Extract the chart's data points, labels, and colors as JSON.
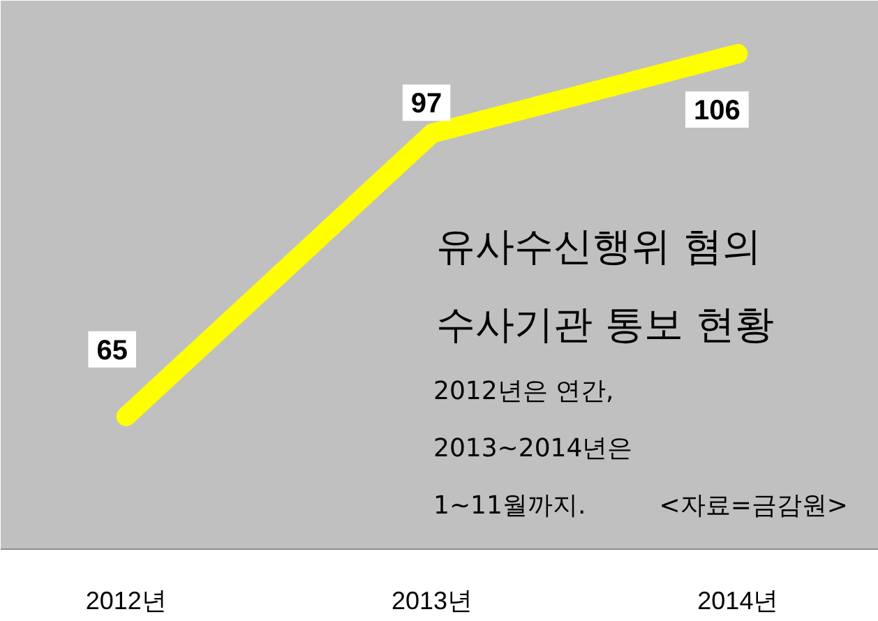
{
  "chart_data": {
    "type": "line",
    "title": "유사수신행위 혐의\n수사기관 통보 현황",
    "subtitle": "2012년은 연간,\n2013~2014년은\n1~11월까지.",
    "annotations": [
      "<자료=금감원>"
    ],
    "categories": [
      "2012년",
      "2013년",
      "2014년"
    ],
    "series": [
      {
        "color": "#ffff00",
        "values": [
          65,
          97,
          106
        ]
      }
    ],
    "ylim": [
      50,
      112
    ],
    "data_labels": true,
    "tick_labels": "x",
    "grid": false,
    "marker": "none",
    "line_style": "solid"
  }
}
